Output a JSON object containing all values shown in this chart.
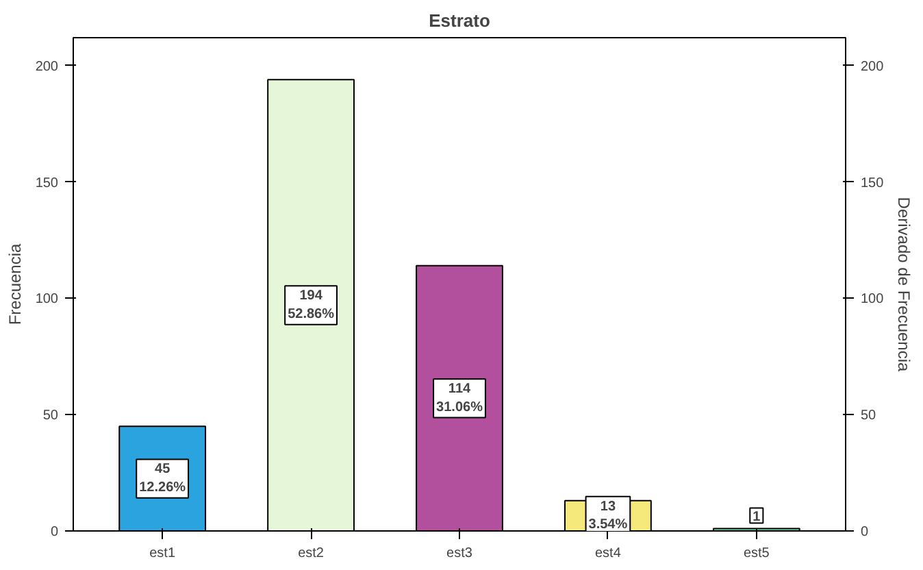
{
  "chart_data": {
    "type": "bar",
    "title": "Estrato",
    "ylabel": "Frecuencia",
    "y2label": "Derivado de Frecuencia",
    "categories": [
      "est1",
      "est2",
      "est3",
      "est4",
      "est5"
    ],
    "values": [
      45,
      194,
      114,
      13,
      1
    ],
    "colors": [
      "#2aa3de",
      "#e6f6d8",
      "#b2509e",
      "#f6e97c",
      "#7fd4a6"
    ],
    "value_labels": [
      "45\n12.26%",
      "194\n52.86%",
      "114\n31.06%",
      "13\n3.54%",
      "1"
    ],
    "ylim": [
      0,
      212
    ],
    "yticks": [
      0,
      50,
      100,
      150,
      200
    ],
    "y2lim": [
      0,
      212
    ],
    "y2ticks": [
      0,
      50,
      100,
      150,
      200
    ],
    "grid": false
  }
}
